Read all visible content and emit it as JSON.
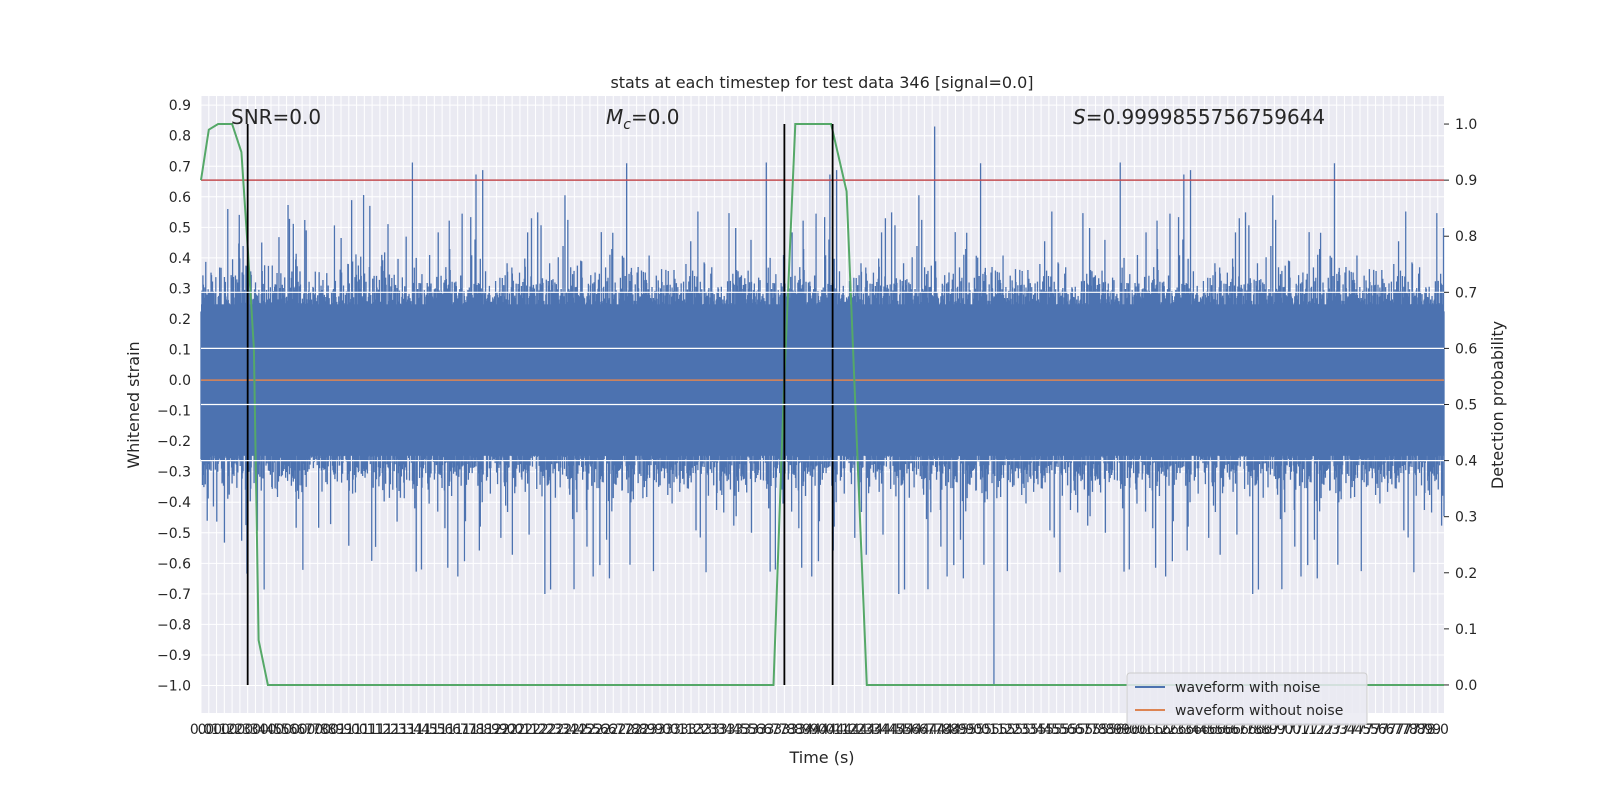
{
  "chart_data": {
    "type": "line",
    "title": "stats at each timestep for test data 346 [signal=0.0]",
    "xlabel": "Time (s)",
    "ylabel": "Whitened strain",
    "y2label": "Detection probability",
    "xlim": [
      0.0,
      7.99
    ],
    "ylim": [
      -1.09,
      0.93
    ],
    "y2lim": [
      -0.05,
      1.05
    ],
    "x_tick_step": 0.05,
    "y_ticks": [
      "0.9",
      "0.8",
      "0.7",
      "0.6",
      "0.5",
      "0.4",
      "0.3",
      "0.2",
      "0.1",
      "0.0",
      "−0.1",
      "−0.2",
      "−0.3",
      "−0.4",
      "−0.5",
      "−0.6",
      "−0.7",
      "−0.8",
      "−0.9",
      "−1.0"
    ],
    "y2_ticks": [
      "1.0",
      "0.9",
      "0.8",
      "0.7",
      "0.6",
      "0.5",
      "0.4",
      "0.3",
      "0.2",
      "0.1",
      "0.0"
    ],
    "grid": true,
    "annotations": {
      "snr": "SNR=0.0",
      "mc_symbol": "M",
      "mc_sub": "c",
      "mc_value": "=0.0",
      "s_symbol": "S",
      "s_value": "=0.9999855756759644"
    },
    "threshold": {
      "y2": 0.9,
      "color": "#c44e52"
    },
    "vertical_lines_x": [
      0.3,
      3.75,
      4.06
    ],
    "series": [
      {
        "name": "waveform with noise",
        "color": "#4c72b0",
        "axis": "left",
        "typical_amplitude": 0.4,
        "peak_min": -1.0,
        "peak_max": 0.83
      },
      {
        "name": "waveform without noise",
        "color": "#dd8452",
        "axis": "left",
        "values_constant": 0.0
      }
    ],
    "detection_probability": {
      "color": "#55a868",
      "axis": "right",
      "x": [
        0.0,
        0.05,
        0.11,
        0.2,
        0.26,
        0.3,
        0.34,
        0.37,
        0.43,
        3.68,
        3.75,
        3.82,
        4.05,
        4.15,
        4.28,
        7.99
      ],
      "y": [
        0.9,
        0.99,
        1.0,
        1.0,
        0.95,
        0.78,
        0.6,
        0.08,
        0.0,
        0.0,
        0.55,
        1.0,
        1.0,
        0.88,
        0.0,
        0.0
      ]
    }
  }
}
